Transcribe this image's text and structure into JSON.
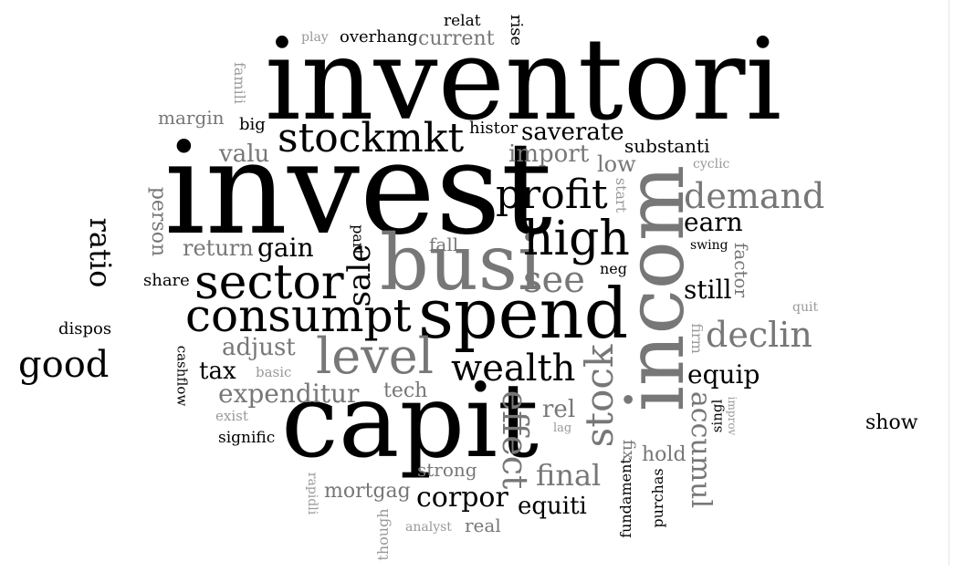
{
  "colors": {
    "dark": "#000000",
    "grey": "#777777",
    "light": "#9a9a9a"
  },
  "words": {
    "inventori": "inventori",
    "invest": "invest",
    "capit": "capit",
    "spend": "spend",
    "incom": "incom",
    "busi": "busi",
    "consumpt": "consumpt",
    "sector": "sector",
    "stockmkt": "stockmkt",
    "level": "level",
    "high": "high",
    "profit": "profit",
    "wealth": "wealth",
    "good": "good",
    "demand": "demand",
    "declin": "declin",
    "effect": "effect",
    "stock": "stock",
    "sale": "sale",
    "see": "see",
    "final": "final",
    "ratio": "ratio",
    "accumul": "accumul",
    "expenditur": "expenditur",
    "corpor": "corpor",
    "adjust": "adjust",
    "equip": "equip",
    "earn": "earn",
    "still": "still",
    "gain": "gain",
    "equiti": "equiti",
    "saverate": "saverate",
    "import": "import",
    "return": "return",
    "valu": "valu",
    "low": "low",
    "tax": "tax",
    "rel": "rel",
    "mortgag": "mortgag",
    "tech": "tech",
    "substanti": "substanti",
    "current": "current",
    "overhang": "overhang",
    "margin": "margin",
    "strong": "strong",
    "hold": "hold",
    "real": "real",
    "histor": "histor",
    "share": "share",
    "show": "show",
    "fall": "fall",
    "neg": "neg",
    "signific": "signific",
    "relat": "relat",
    "big": "big",
    "dispos": "dispos",
    "exist": "exist",
    "basic": "basic",
    "swing": "swing",
    "cyclic": "cyclic",
    "play": "play",
    "quit": "quit",
    "lag": "lag",
    "analyst": "analyst",
    "person": "person",
    "famili": "famili",
    "rise": "rise",
    "start": "start",
    "part": "part",
    "cashflow": "cashflow",
    "factor": "factor",
    "firm": "firm",
    "fix": "fix",
    "fundament": "fundament",
    "purchas": "purchas",
    "singl": "singl",
    "improv": "improv",
    "rapidli": "rapidli",
    "though": "though"
  }
}
